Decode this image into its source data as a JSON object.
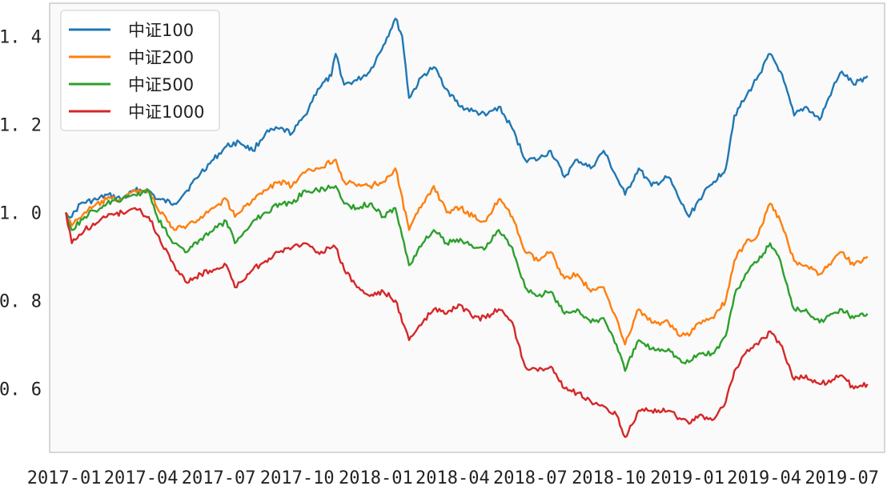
{
  "chart_data": {
    "type": "line",
    "title": "",
    "xlabel": "",
    "ylabel": "",
    "grid": false,
    "legend_position": "top-left",
    "x_ticks": [
      "2017-01",
      "2017-04",
      "2017-07",
      "2017-10",
      "2018-01",
      "2018-04",
      "2018-07",
      "2018-10",
      "2019-01",
      "2019-04",
      "2019-07"
    ],
    "y_ticks": [
      "0.6",
      "0.8",
      "1.0",
      "1.2",
      "1.4"
    ],
    "x_range": [
      "2016-12-15",
      "2019-08-20"
    ],
    "ylim": [
      0.455,
      1.475
    ],
    "colors": {
      "background": "#fafafa",
      "axes": "#b0b0b0"
    },
    "series": [
      {
        "name": "中证100",
        "color": "#1f77b4",
        "points": [
          [
            "2017-01-03",
            1.0
          ],
          [
            "2017-01-10",
            0.99
          ],
          [
            "2017-01-20",
            1.02
          ],
          [
            "2017-02-10",
            1.03
          ],
          [
            "2017-02-20",
            1.04
          ],
          [
            "2017-03-10",
            1.03
          ],
          [
            "2017-03-25",
            1.05
          ],
          [
            "2017-04-10",
            1.05
          ],
          [
            "2017-04-20",
            1.03
          ],
          [
            "2017-05-10",
            1.02
          ],
          [
            "2017-05-25",
            1.05
          ],
          [
            "2017-06-10",
            1.09
          ],
          [
            "2017-06-25",
            1.12
          ],
          [
            "2017-07-10",
            1.15
          ],
          [
            "2017-07-25",
            1.16
          ],
          [
            "2017-08-10",
            1.14
          ],
          [
            "2017-08-25",
            1.18
          ],
          [
            "2017-09-10",
            1.19
          ],
          [
            "2017-09-25",
            1.18
          ],
          [
            "2017-10-10",
            1.22
          ],
          [
            "2017-10-25",
            1.28
          ],
          [
            "2017-11-10",
            1.31
          ],
          [
            "2017-11-15",
            1.36
          ],
          [
            "2017-11-25",
            1.29
          ],
          [
            "2017-12-10",
            1.3
          ],
          [
            "2017-12-25",
            1.32
          ],
          [
            "2018-01-10",
            1.38
          ],
          [
            "2018-01-24",
            1.44
          ],
          [
            "2018-02-01",
            1.4
          ],
          [
            "2018-02-09",
            1.26
          ],
          [
            "2018-02-25",
            1.31
          ],
          [
            "2018-03-10",
            1.33
          ],
          [
            "2018-03-25",
            1.28
          ],
          [
            "2018-04-10",
            1.24
          ],
          [
            "2018-04-25",
            1.23
          ],
          [
            "2018-05-10",
            1.22
          ],
          [
            "2018-05-25",
            1.24
          ],
          [
            "2018-06-10",
            1.19
          ],
          [
            "2018-06-25",
            1.12
          ],
          [
            "2018-07-10",
            1.12
          ],
          [
            "2018-07-25",
            1.14
          ],
          [
            "2018-08-10",
            1.08
          ],
          [
            "2018-08-25",
            1.12
          ],
          [
            "2018-09-10",
            1.1
          ],
          [
            "2018-09-25",
            1.14
          ],
          [
            "2018-10-10",
            1.08
          ],
          [
            "2018-10-20",
            1.04
          ],
          [
            "2018-11-05",
            1.1
          ],
          [
            "2018-11-20",
            1.06
          ],
          [
            "2018-12-10",
            1.08
          ],
          [
            "2018-12-25",
            1.02
          ],
          [
            "2019-01-03",
            0.99
          ],
          [
            "2019-01-15",
            1.03
          ],
          [
            "2019-02-01",
            1.07
          ],
          [
            "2019-02-15",
            1.1
          ],
          [
            "2019-02-25",
            1.22
          ],
          [
            "2019-03-10",
            1.26
          ],
          [
            "2019-03-25",
            1.31
          ],
          [
            "2019-04-08",
            1.36
          ],
          [
            "2019-04-20",
            1.32
          ],
          [
            "2019-05-06",
            1.22
          ],
          [
            "2019-05-20",
            1.24
          ],
          [
            "2019-06-05",
            1.21
          ],
          [
            "2019-06-20",
            1.28
          ],
          [
            "2019-07-01",
            1.32
          ],
          [
            "2019-07-15",
            1.29
          ],
          [
            "2019-07-31",
            1.31
          ]
        ]
      },
      {
        "name": "中证200",
        "color": "#ff7f0e",
        "points": [
          [
            "2017-01-03",
            1.0
          ],
          [
            "2017-01-10",
            0.97
          ],
          [
            "2017-01-25",
            1.0
          ],
          [
            "2017-02-20",
            1.03
          ],
          [
            "2017-03-10",
            1.03
          ],
          [
            "2017-03-25",
            1.05
          ],
          [
            "2017-04-10",
            1.05
          ],
          [
            "2017-04-20",
            1.01
          ],
          [
            "2017-05-10",
            0.96
          ],
          [
            "2017-05-25",
            0.97
          ],
          [
            "2017-06-10",
            0.99
          ],
          [
            "2017-06-25",
            1.01
          ],
          [
            "2017-07-10",
            1.03
          ],
          [
            "2017-07-20",
            0.99
          ],
          [
            "2017-08-10",
            1.03
          ],
          [
            "2017-08-25",
            1.05
          ],
          [
            "2017-09-10",
            1.07
          ],
          [
            "2017-09-25",
            1.06
          ],
          [
            "2017-10-10",
            1.09
          ],
          [
            "2017-10-25",
            1.1
          ],
          [
            "2017-11-15",
            1.12
          ],
          [
            "2017-11-25",
            1.07
          ],
          [
            "2017-12-10",
            1.06
          ],
          [
            "2017-12-25",
            1.06
          ],
          [
            "2018-01-10",
            1.07
          ],
          [
            "2018-01-24",
            1.1
          ],
          [
            "2018-02-09",
            0.96
          ],
          [
            "2018-02-25",
            1.02
          ],
          [
            "2018-03-10",
            1.06
          ],
          [
            "2018-03-25",
            1.0
          ],
          [
            "2018-04-10",
            1.01
          ],
          [
            "2018-04-25",
            0.99
          ],
          [
            "2018-05-10",
            0.98
          ],
          [
            "2018-05-25",
            1.03
          ],
          [
            "2018-06-10",
            0.99
          ],
          [
            "2018-06-25",
            0.91
          ],
          [
            "2018-07-10",
            0.89
          ],
          [
            "2018-07-25",
            0.91
          ],
          [
            "2018-08-10",
            0.85
          ],
          [
            "2018-08-25",
            0.86
          ],
          [
            "2018-09-10",
            0.82
          ],
          [
            "2018-09-25",
            0.83
          ],
          [
            "2018-10-10",
            0.76
          ],
          [
            "2018-10-20",
            0.7
          ],
          [
            "2018-11-05",
            0.78
          ],
          [
            "2018-11-20",
            0.75
          ],
          [
            "2018-12-10",
            0.75
          ],
          [
            "2018-12-25",
            0.72
          ],
          [
            "2019-01-03",
            0.72
          ],
          [
            "2019-01-15",
            0.75
          ],
          [
            "2019-02-01",
            0.76
          ],
          [
            "2019-02-15",
            0.8
          ],
          [
            "2019-02-25",
            0.89
          ],
          [
            "2019-03-10",
            0.93
          ],
          [
            "2019-03-25",
            0.95
          ],
          [
            "2019-04-08",
            1.02
          ],
          [
            "2019-04-20",
            0.98
          ],
          [
            "2019-05-06",
            0.89
          ],
          [
            "2019-05-20",
            0.88
          ],
          [
            "2019-06-05",
            0.86
          ],
          [
            "2019-06-20",
            0.89
          ],
          [
            "2019-07-01",
            0.91
          ],
          [
            "2019-07-15",
            0.88
          ],
          [
            "2019-07-31",
            0.9
          ]
        ]
      },
      {
        "name": "中证500",
        "color": "#2ca02c",
        "points": [
          [
            "2017-01-03",
            1.0
          ],
          [
            "2017-01-10",
            0.96
          ],
          [
            "2017-01-25",
            0.99
          ],
          [
            "2017-02-20",
            1.02
          ],
          [
            "2017-03-10",
            1.03
          ],
          [
            "2017-03-25",
            1.04
          ],
          [
            "2017-04-10",
            1.05
          ],
          [
            "2017-04-20",
            0.99
          ],
          [
            "2017-05-10",
            0.93
          ],
          [
            "2017-05-25",
            0.91
          ],
          [
            "2017-06-10",
            0.94
          ],
          [
            "2017-06-25",
            0.96
          ],
          [
            "2017-07-10",
            0.98
          ],
          [
            "2017-07-20",
            0.93
          ],
          [
            "2017-08-10",
            0.98
          ],
          [
            "2017-08-25",
            1.0
          ],
          [
            "2017-09-10",
            1.02
          ],
          [
            "2017-09-25",
            1.02
          ],
          [
            "2017-10-10",
            1.05
          ],
          [
            "2017-10-25",
            1.05
          ],
          [
            "2017-11-15",
            1.06
          ],
          [
            "2017-11-25",
            1.02
          ],
          [
            "2017-12-10",
            1.01
          ],
          [
            "2017-12-25",
            1.02
          ],
          [
            "2018-01-10",
            0.99
          ],
          [
            "2018-01-24",
            1.01
          ],
          [
            "2018-02-09",
            0.88
          ],
          [
            "2018-02-25",
            0.93
          ],
          [
            "2018-03-10",
            0.96
          ],
          [
            "2018-03-25",
            0.93
          ],
          [
            "2018-04-10",
            0.94
          ],
          [
            "2018-04-25",
            0.92
          ],
          [
            "2018-05-10",
            0.92
          ],
          [
            "2018-05-25",
            0.96
          ],
          [
            "2018-06-10",
            0.92
          ],
          [
            "2018-06-25",
            0.83
          ],
          [
            "2018-07-10",
            0.81
          ],
          [
            "2018-07-25",
            0.82
          ],
          [
            "2018-08-10",
            0.77
          ],
          [
            "2018-08-25",
            0.78
          ],
          [
            "2018-09-10",
            0.75
          ],
          [
            "2018-09-25",
            0.76
          ],
          [
            "2018-10-10",
            0.7
          ],
          [
            "2018-10-20",
            0.64
          ],
          [
            "2018-11-05",
            0.71
          ],
          [
            "2018-11-20",
            0.69
          ],
          [
            "2018-12-10",
            0.69
          ],
          [
            "2018-12-25",
            0.66
          ],
          [
            "2019-01-03",
            0.66
          ],
          [
            "2019-01-15",
            0.68
          ],
          [
            "2019-02-01",
            0.68
          ],
          [
            "2019-02-15",
            0.72
          ],
          [
            "2019-02-25",
            0.81
          ],
          [
            "2019-03-10",
            0.86
          ],
          [
            "2019-03-25",
            0.89
          ],
          [
            "2019-04-08",
            0.93
          ],
          [
            "2019-04-20",
            0.89
          ],
          [
            "2019-05-06",
            0.78
          ],
          [
            "2019-05-20",
            0.78
          ],
          [
            "2019-06-05",
            0.75
          ],
          [
            "2019-06-20",
            0.77
          ],
          [
            "2019-07-01",
            0.78
          ],
          [
            "2019-07-15",
            0.76
          ],
          [
            "2019-07-31",
            0.77
          ]
        ]
      },
      {
        "name": "中证1000",
        "color": "#d62728",
        "points": [
          [
            "2017-01-03",
            1.0
          ],
          [
            "2017-01-10",
            0.93
          ],
          [
            "2017-01-25",
            0.96
          ],
          [
            "2017-02-20",
            0.99
          ],
          [
            "2017-03-10",
            1.0
          ],
          [
            "2017-03-25",
            1.01
          ],
          [
            "2017-04-10",
            0.99
          ],
          [
            "2017-04-20",
            0.95
          ],
          [
            "2017-05-10",
            0.88
          ],
          [
            "2017-05-25",
            0.84
          ],
          [
            "2017-06-10",
            0.86
          ],
          [
            "2017-06-25",
            0.87
          ],
          [
            "2017-07-10",
            0.88
          ],
          [
            "2017-07-20",
            0.83
          ],
          [
            "2017-08-10",
            0.87
          ],
          [
            "2017-08-25",
            0.89
          ],
          [
            "2017-09-10",
            0.91
          ],
          [
            "2017-09-25",
            0.92
          ],
          [
            "2017-10-10",
            0.93
          ],
          [
            "2017-10-25",
            0.91
          ],
          [
            "2017-11-15",
            0.92
          ],
          [
            "2017-11-25",
            0.87
          ],
          [
            "2017-12-10",
            0.83
          ],
          [
            "2017-12-25",
            0.81
          ],
          [
            "2018-01-10",
            0.82
          ],
          [
            "2018-01-24",
            0.8
          ],
          [
            "2018-02-09",
            0.71
          ],
          [
            "2018-02-25",
            0.75
          ],
          [
            "2018-03-10",
            0.78
          ],
          [
            "2018-03-25",
            0.77
          ],
          [
            "2018-04-10",
            0.79
          ],
          [
            "2018-04-25",
            0.76
          ],
          [
            "2018-05-10",
            0.76
          ],
          [
            "2018-05-25",
            0.78
          ],
          [
            "2018-06-10",
            0.75
          ],
          [
            "2018-06-25",
            0.65
          ],
          [
            "2018-07-10",
            0.64
          ],
          [
            "2018-07-25",
            0.65
          ],
          [
            "2018-08-10",
            0.6
          ],
          [
            "2018-08-25",
            0.59
          ],
          [
            "2018-09-10",
            0.57
          ],
          [
            "2018-09-25",
            0.56
          ],
          [
            "2018-10-10",
            0.54
          ],
          [
            "2018-10-20",
            0.49
          ],
          [
            "2018-11-05",
            0.55
          ],
          [
            "2018-11-20",
            0.55
          ],
          [
            "2018-12-10",
            0.55
          ],
          [
            "2018-12-25",
            0.53
          ],
          [
            "2019-01-03",
            0.52
          ],
          [
            "2019-01-15",
            0.54
          ],
          [
            "2019-02-01",
            0.53
          ],
          [
            "2019-02-15",
            0.57
          ],
          [
            "2019-02-25",
            0.64
          ],
          [
            "2019-03-10",
            0.68
          ],
          [
            "2019-03-25",
            0.7
          ],
          [
            "2019-04-08",
            0.73
          ],
          [
            "2019-04-20",
            0.7
          ],
          [
            "2019-05-06",
            0.62
          ],
          [
            "2019-05-20",
            0.63
          ],
          [
            "2019-06-05",
            0.61
          ],
          [
            "2019-06-20",
            0.62
          ],
          [
            "2019-07-01",
            0.63
          ],
          [
            "2019-07-15",
            0.6
          ],
          [
            "2019-07-31",
            0.61
          ]
        ]
      }
    ]
  }
}
